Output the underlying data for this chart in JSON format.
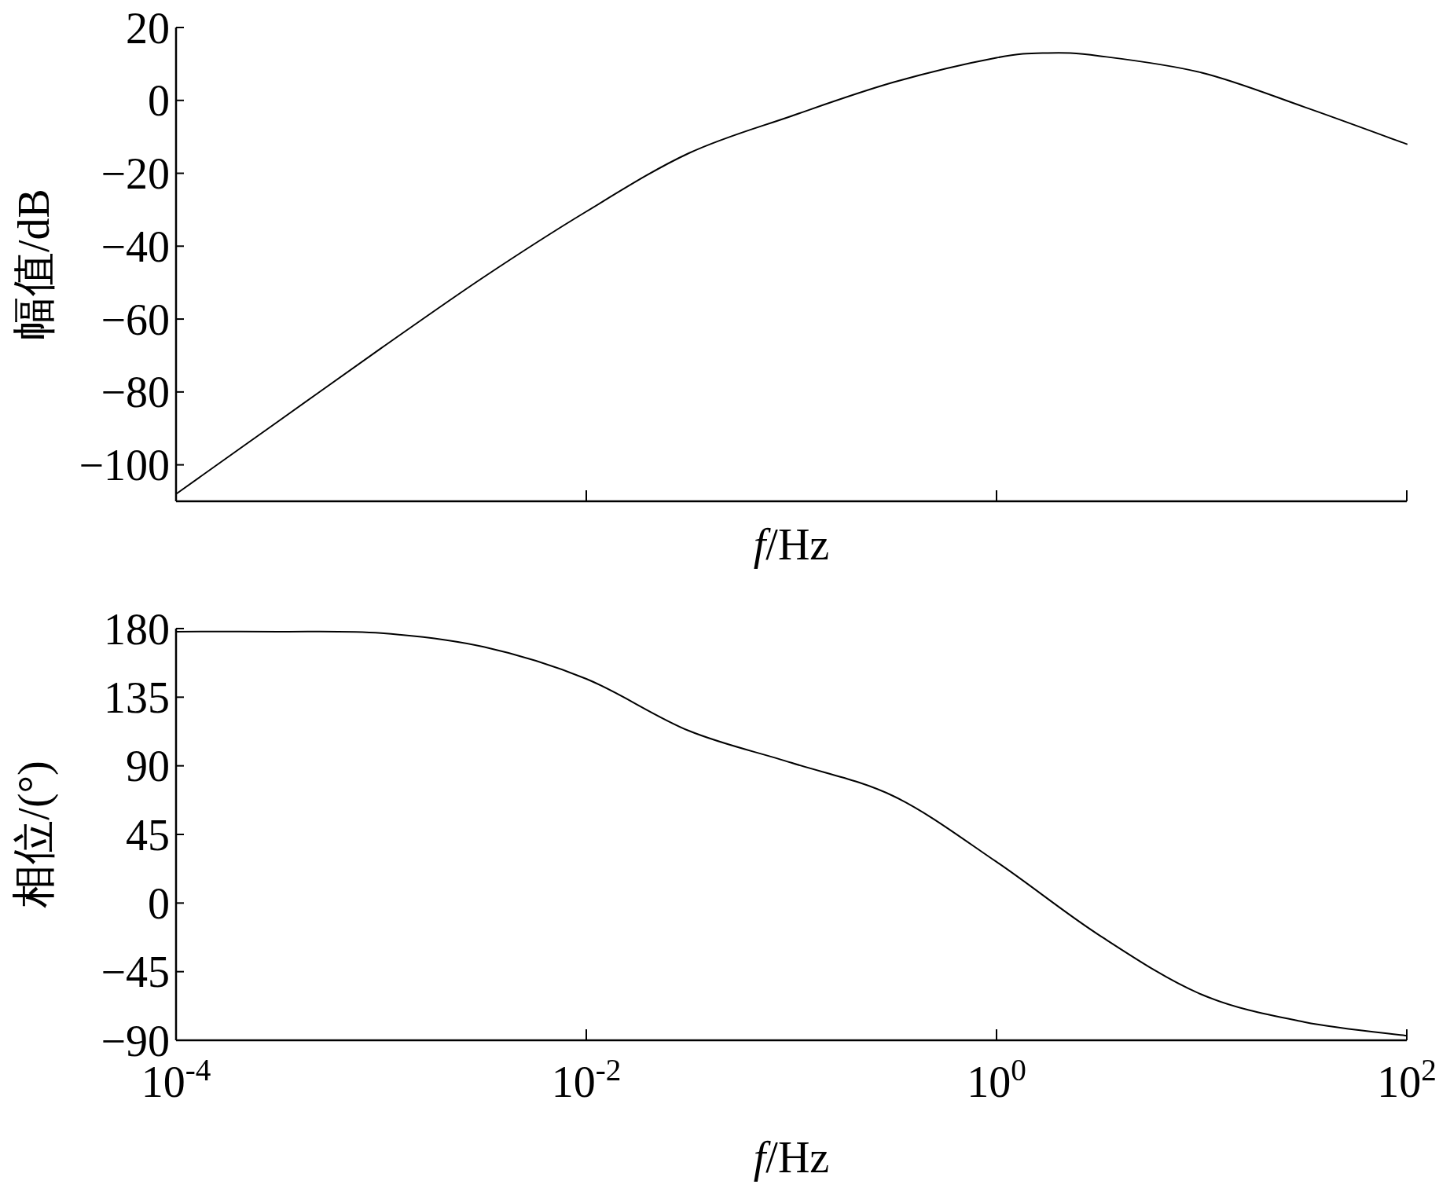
{
  "chart_data": [
    {
      "type": "line",
      "xlabel": "*f*/Hz",
      "ylabel": "幅值/dB",
      "log": "x",
      "tick_labels": "y",
      "xlim": [
        0.0001,
        100
      ],
      "ylim": [
        -110,
        20
      ],
      "xticks": [
        {
          "value": 0.0001,
          "label": null
        },
        {
          "value": 0.01,
          "label": null
        },
        {
          "value": 1,
          "label": null
        },
        {
          "value": 100,
          "label": null
        }
      ],
      "yticks": [
        -100,
        -80,
        -60,
        -40,
        -20,
        0,
        20
      ],
      "series": [
        {
          "color": "#000000",
          "x": [
            0.0001,
            0.000316,
            0.001,
            0.00316,
            0.01,
            0.0316,
            0.1,
            0.316,
            1,
            1.78,
            3.16,
            10,
            31.6,
            100
          ],
          "values": [
            -108,
            -88,
            -68,
            -48.5,
            -30.5,
            -14.5,
            -4.3,
            5,
            11.7,
            13,
            12.2,
            7.6,
            -1.8,
            -12
          ]
        }
      ]
    },
    {
      "type": "line",
      "xlabel": "*f*/Hz",
      "ylabel": "相位/(°)",
      "log": "x",
      "xlim": [
        0.0001,
        100
      ],
      "ylim": [
        -90,
        180
      ],
      "xticks": [
        {
          "value": 0.0001,
          "label": "10$^{-4}$"
        },
        {
          "value": 0.01,
          "label": "10$^{-2}$"
        },
        {
          "value": 1,
          "label": "10$^{0}$"
        },
        {
          "value": 100,
          "label": "10$^{2}$"
        }
      ],
      "yticks": [
        -90,
        -45,
        0,
        45,
        90,
        135,
        180
      ],
      "series": [
        {
          "color": "#000000",
          "x": [
            0.0001,
            0.000316,
            0.001,
            0.00316,
            0.01,
            0.0316,
            0.1,
            0.316,
            1,
            3.16,
            10,
            31.6,
            100
          ],
          "values": [
            178,
            178,
            177,
            168,
            147,
            113,
            92,
            70,
            27,
            -21,
            -60,
            -78,
            -87
          ]
        }
      ]
    }
  ]
}
